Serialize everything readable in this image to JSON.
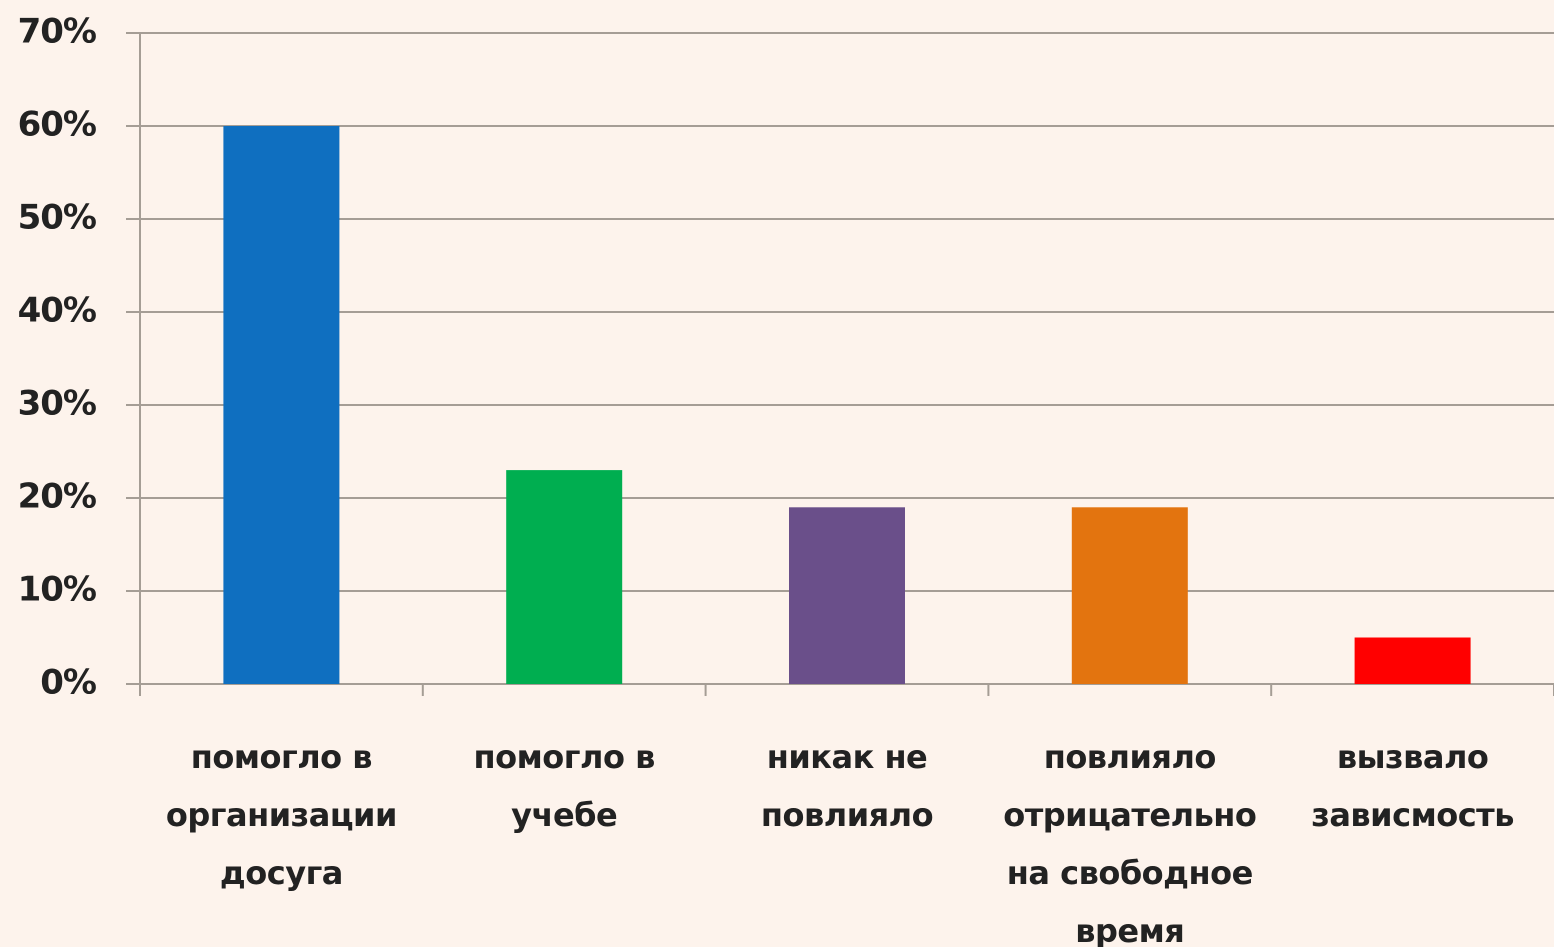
{
  "chart_data": {
    "type": "bar",
    "categories": [
      "помогло в организации досуга",
      "помогло в учебе",
      "никак не повлияло",
      "повлияло отрицательно на свободное время",
      "вызвало зависмость"
    ],
    "values": [
      60,
      23,
      19,
      19,
      5
    ],
    "colors": [
      "#0f6fc0",
      "#00ae50",
      "#6a4f8a",
      "#e3740f",
      "#ff0000"
    ],
    "ylim": [
      0,
      70
    ],
    "yticks": [
      {
        "value": 0,
        "label": "0%"
      },
      {
        "value": 10,
        "label": "10%"
      },
      {
        "value": 20,
        "label": "20%"
      },
      {
        "value": 30,
        "label": "30%"
      },
      {
        "value": 40,
        "label": "40%"
      },
      {
        "value": 50,
        "label": "50%"
      },
      {
        "value": 60,
        "label": "60%"
      },
      {
        "value": 70,
        "label": "70%"
      }
    ],
    "grid": true
  }
}
